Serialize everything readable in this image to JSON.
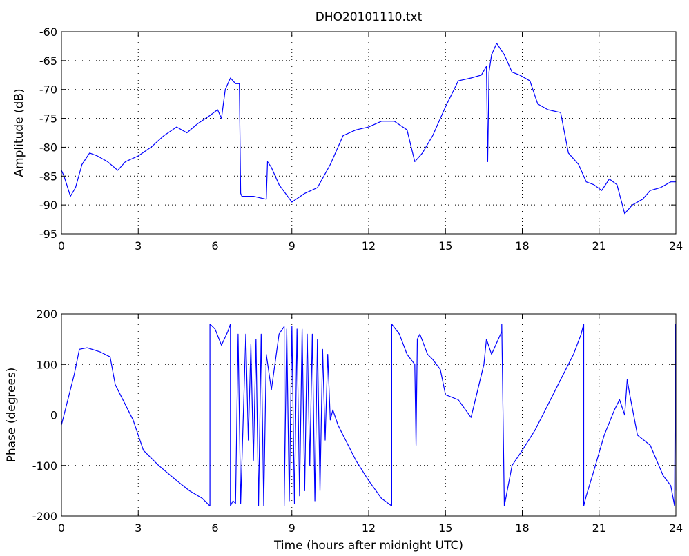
{
  "figure_title": "DHO20101110.txt",
  "chart_data": [
    {
      "type": "line",
      "title": "DHO20101110.txt",
      "xlabel": "",
      "ylabel": "Amplitude (dB)",
      "xlim": [
        0,
        24
      ],
      "ylim": [
        -95,
        -60
      ],
      "xticks": [
        0,
        3,
        6,
        9,
        12,
        15,
        18,
        21,
        24
      ],
      "yticks": [
        -95,
        -90,
        -85,
        -80,
        -75,
        -70,
        -65,
        -60
      ],
      "grid": true,
      "color": "#0000ff",
      "series": [
        {
          "x": [
            0,
            0.1,
            0.35,
            0.55,
            0.8,
            1.1,
            1.4,
            1.8,
            2.2,
            2.5,
            3.0,
            3.5,
            4.0,
            4.5,
            4.9,
            5.3,
            5.8,
            6.1,
            6.25,
            6.4,
            6.6,
            6.8,
            6.95,
            7.0,
            7.05,
            7.5,
            8.0,
            8.05,
            8.2,
            8.5,
            9.0,
            9.5,
            10.0,
            10.5,
            11.0,
            11.5,
            12.0,
            12.5,
            13.0,
            13.5,
            13.8,
            14.1,
            14.5,
            15.0,
            15.5,
            16.0,
            16.4,
            16.6,
            16.65,
            16.7,
            16.8,
            17.0,
            17.3,
            17.6,
            17.9,
            18.3,
            18.6,
            19.0,
            19.5,
            19.8,
            20.2,
            20.5,
            20.8,
            21.1,
            21.4,
            21.7,
            22.0,
            22.3,
            22.7,
            23.0,
            23.4,
            23.8,
            24.0
          ],
          "y": [
            -84,
            -85,
            -88.5,
            -87,
            -83,
            -81,
            -81.5,
            -82.5,
            -84,
            -82.5,
            -81.5,
            -80,
            -78,
            -76.5,
            -77.5,
            -76,
            -74.5,
            -73.5,
            -75,
            -70,
            -68,
            -69,
            -69,
            -88,
            -88.5,
            -88.5,
            -89,
            -82.5,
            -83.5,
            -86.5,
            -89.5,
            -88,
            -87,
            -83,
            -78,
            -77,
            -76.5,
            -75.5,
            -75.5,
            -77,
            -82.5,
            -81,
            -78,
            -73,
            -68.5,
            -68,
            -67.5,
            -66,
            -82.5,
            -67,
            -64,
            -62,
            -64,
            -67,
            -67.5,
            -68.5,
            -72.5,
            -73.5,
            -74,
            -81,
            -83,
            -86,
            -86.5,
            -87.5,
            -85.5,
            -86.5,
            -91.5,
            -90,
            -89,
            -87.5,
            -87,
            -86,
            -86
          ]
        }
      ]
    },
    {
      "type": "line",
      "title": "",
      "xlabel": "Time (hours after midnight UTC)",
      "ylabel": "Phase (degrees)",
      "xlim": [
        0,
        24
      ],
      "ylim": [
        -200,
        200
      ],
      "xticks": [
        0,
        3,
        6,
        9,
        12,
        15,
        18,
        21,
        24
      ],
      "yticks": [
        -200,
        -100,
        0,
        100,
        200
      ],
      "grid": true,
      "color": "#0000ff",
      "series": [
        {
          "x": [
            0,
            0.2,
            0.5,
            0.7,
            1.0,
            1.5,
            1.9,
            2.1,
            2.3,
            2.8,
            3.2,
            3.8,
            4.5,
            5.0,
            5.5,
            5.8,
            5.8,
            6.0,
            6.25,
            6.5,
            6.6,
            6.6,
            6.7,
            6.8,
            6.9,
            7.0,
            7.2,
            7.3,
            7.4,
            7.5,
            7.6,
            7.7,
            7.8,
            7.9,
            8.0,
            8.2,
            8.5,
            8.7,
            8.7,
            8.8,
            8.9,
            9.0,
            9.1,
            9.2,
            9.3,
            9.4,
            9.5,
            9.6,
            9.7,
            9.8,
            9.9,
            10.0,
            10.1,
            10.2,
            10.3,
            10.4,
            10.5,
            10.6,
            10.8,
            11.0,
            11.5,
            12.0,
            12.5,
            12.9,
            12.9,
            13.2,
            13.5,
            13.8,
            13.85,
            13.9,
            14.0,
            14.3,
            14.5,
            14.8,
            15.0,
            15.5,
            16.0,
            16.5,
            16.6,
            16.8,
            17.2,
            17.2,
            17.3,
            17.6,
            18.0,
            18.5,
            19.0,
            19.5,
            20.0,
            20.3,
            20.4,
            20.4,
            20.5,
            20.8,
            21.2,
            21.6,
            21.8,
            22.0,
            22.1,
            22.2,
            22.5,
            23.0,
            23.5,
            23.8,
            23.95,
            23.98,
            24.0
          ],
          "y": [
            -20,
            20,
            80,
            130,
            133,
            125,
            115,
            60,
            40,
            -10,
            -70,
            -100,
            -130,
            -150,
            -165,
            -180,
            180,
            170,
            138,
            165,
            180,
            -180,
            -170,
            -175,
            160,
            -175,
            160,
            -50,
            140,
            -90,
            150,
            -180,
            160,
            -180,
            120,
            50,
            160,
            175,
            -180,
            170,
            -170,
            175,
            -175,
            170,
            -160,
            170,
            -150,
            160,
            -100,
            160,
            -170,
            150,
            -150,
            130,
            -50,
            120,
            -10,
            10,
            -20,
            -40,
            -90,
            -130,
            -165,
            -180,
            180,
            160,
            120,
            100,
            -60,
            150,
            160,
            120,
            110,
            90,
            40,
            30,
            -5,
            100,
            150,
            120,
            165,
            180,
            -180,
            -100,
            -70,
            -30,
            20,
            70,
            120,
            160,
            180,
            -180,
            -160,
            -110,
            -40,
            10,
            30,
            0,
            70,
            40,
            -40,
            -60,
            -120,
            -140,
            -180,
            180,
            -150
          ]
        }
      ]
    }
  ]
}
